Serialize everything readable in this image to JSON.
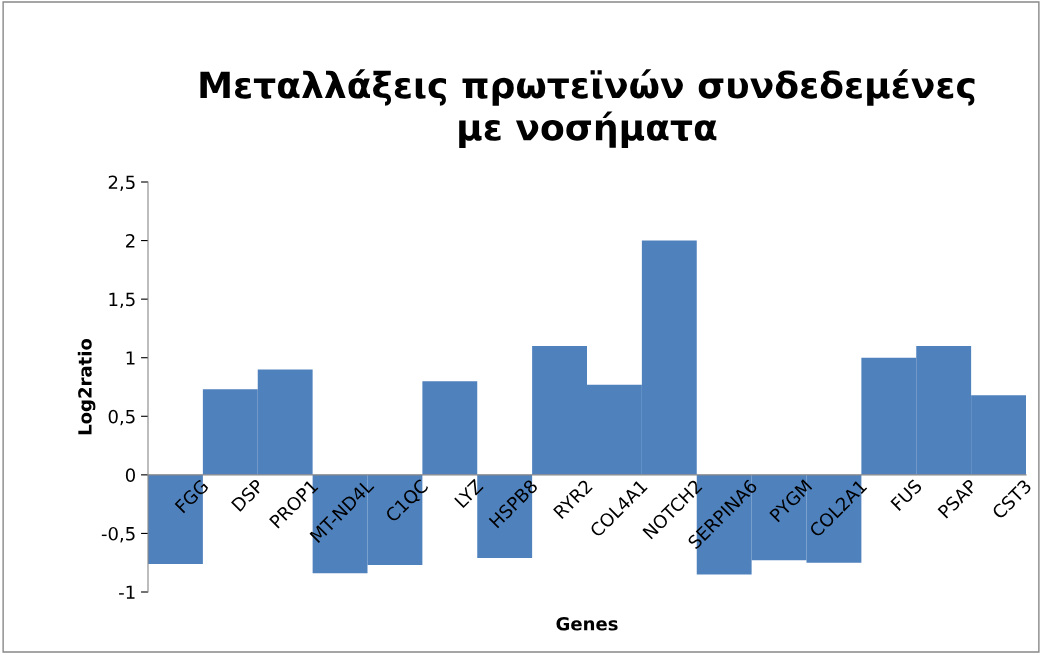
{
  "chart_data": {
    "type": "bar",
    "title": "Μεταλλάξεις πρωτεϊνών συνδεδεμένες\nμε νοσήματα",
    "xlabel": "Genes",
    "ylabel": "Log2ratio",
    "categories": [
      "FGG",
      "DSP",
      "PROP1",
      "MT-ND4L",
      "C1QC",
      "LYZ",
      "HSPB8",
      "RYR2",
      "COL4A1",
      "NOTCH2",
      "SERPINA6",
      "PYGM",
      "COL2A1",
      "FUS",
      "PSAP",
      "CST3"
    ],
    "values": [
      -0.76,
      0.73,
      0.9,
      -0.84,
      -0.77,
      0.8,
      -0.71,
      1.1,
      0.77,
      2.0,
      -0.85,
      -0.73,
      -0.75,
      1.0,
      1.1,
      0.68
    ],
    "color": "#4f81bd",
    "ylim": [
      -1,
      2.5
    ],
    "yticks": [
      {
        "value": -1,
        "label": "-1"
      },
      {
        "value": -0.5,
        "label": "-0,5"
      },
      {
        "value": 0,
        "label": "0"
      },
      {
        "value": 0.5,
        "label": "0,5"
      },
      {
        "value": 1,
        "label": "1"
      },
      {
        "value": 1.5,
        "label": "1,5"
      },
      {
        "value": 2,
        "label": "2"
      },
      {
        "value": 2.5,
        "label": "2,5"
      }
    ],
    "grid": false,
    "legend": false
  }
}
